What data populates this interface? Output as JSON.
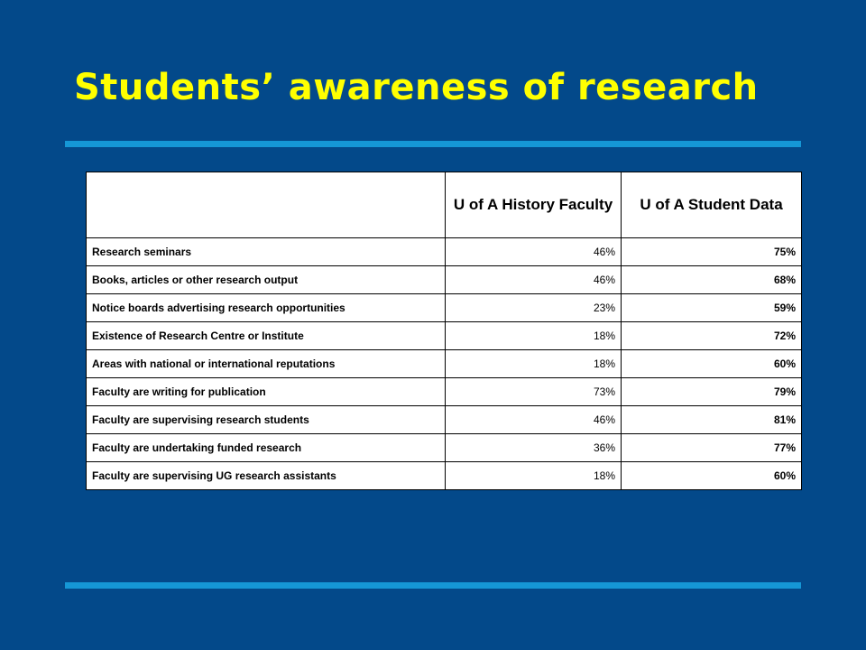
{
  "slide": {
    "title": "Students’ awareness of research",
    "colors": {
      "background": "#03498a",
      "title": "#ffff00",
      "rule": "#1597d6"
    }
  },
  "table": {
    "headers": [
      "",
      "U of A History Faculty",
      "U of A Student Data"
    ],
    "rows": [
      {
        "label": "Research seminars",
        "faculty": "46%",
        "student": "75%"
      },
      {
        "label": "Books, articles or other research output",
        "faculty": "46%",
        "student": "68%"
      },
      {
        "label": "Notice boards advertising research opportunities",
        "faculty": "23%",
        "student": "59%"
      },
      {
        "label": "Existence of Research Centre or Institute",
        "faculty": "18%",
        "student": "72%"
      },
      {
        "label": "Areas with national or international reputations",
        "faculty": "18%",
        "student": "60%"
      },
      {
        "label": "Faculty are writing for publication",
        "faculty": "73%",
        "student": "79%"
      },
      {
        "label": "Faculty are supervising research students",
        "faculty": "46%",
        "student": "81%"
      },
      {
        "label": "Faculty are undertaking funded research",
        "faculty": "36%",
        "student": "77%"
      },
      {
        "label": "Faculty are supervising UG research assistants",
        "faculty": "18%",
        "student": "60%"
      }
    ]
  }
}
